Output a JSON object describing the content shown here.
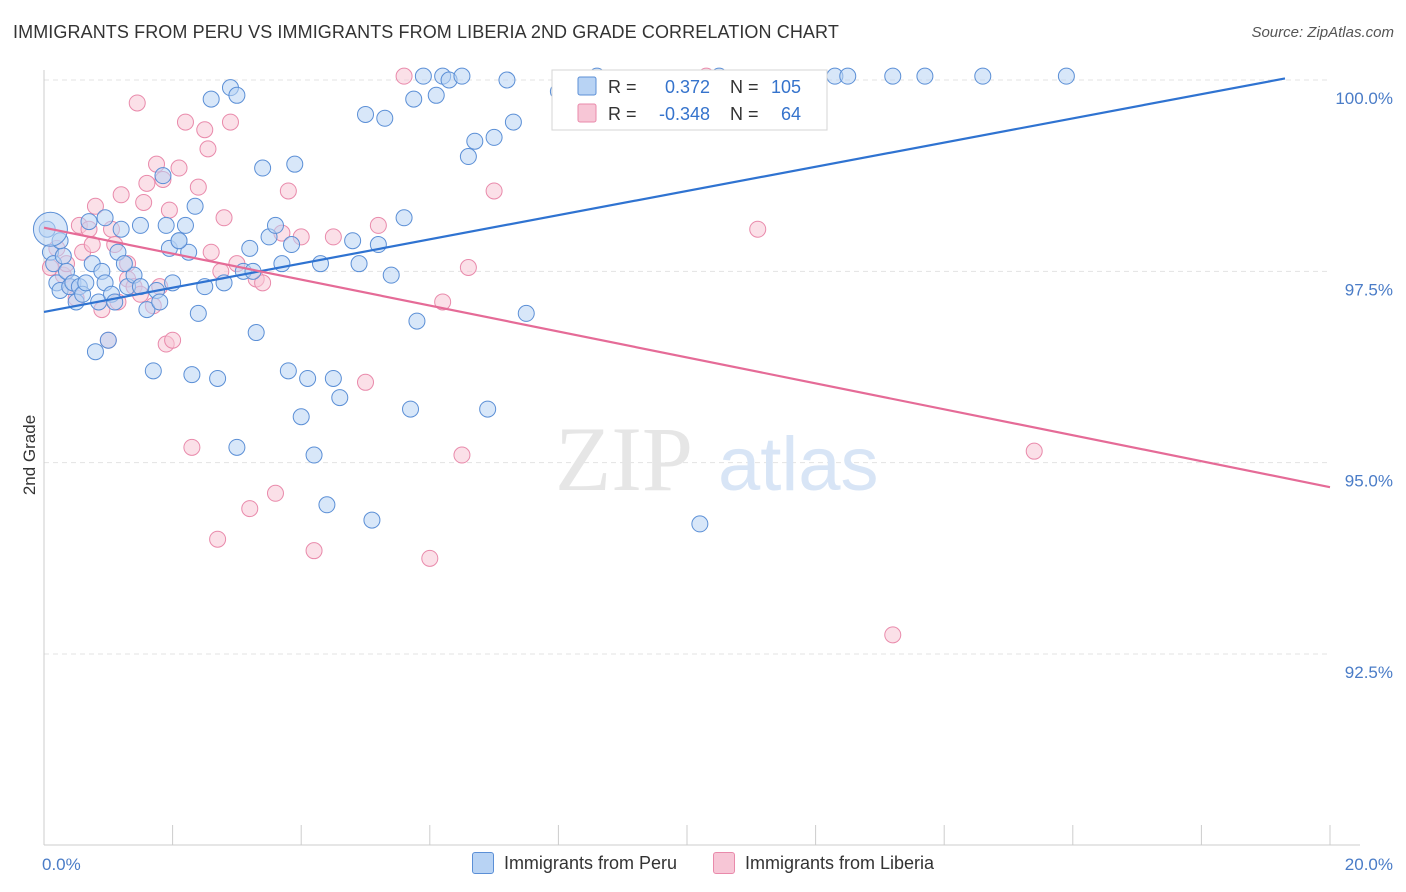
{
  "header": {
    "title": "IMMIGRANTS FROM PERU VS IMMIGRANTS FROM LIBERIA 2ND GRADE CORRELATION CHART",
    "source": "Source: ZipAtlas.com"
  },
  "watermark": {
    "part1": "ZIP",
    "part2": "atlas"
  },
  "legend_box": {
    "rows": [
      {
        "r_label": "R =",
        "r_value": "0.372",
        "n_label": "N =",
        "n_value": "105"
      },
      {
        "r_label": "R =",
        "r_value": "-0.348",
        "n_label": "N =",
        "n_value": "64"
      }
    ]
  },
  "bottom_legend": {
    "peru": "Immigrants from Peru",
    "liberia": "Immigrants from Liberia"
  },
  "colors": {
    "peru_fill": "#b8d3f4",
    "peru_stroke": "#5b8fd6",
    "peru_line": "#2f73d1",
    "liberia_fill": "#f7c6d6",
    "liberia_stroke": "#e98aab",
    "liberia_line": "#e56b97",
    "grid": "#e3e3e3",
    "tick_text": "#4a7cc7"
  },
  "chart_data": {
    "type": "scatter",
    "title": "IMMIGRANTS FROM PERU VS IMMIGRANTS FROM LIBERIA 2ND GRADE CORRELATION CHART",
    "xlabel": "",
    "ylabel": "2nd Grade",
    "xlim": [
      0,
      20
    ],
    "ylim": [
      90.3,
      100.3
    ],
    "x_tick_labels": [
      "0.0%",
      "20.0%"
    ],
    "y_ticks": [
      92.5,
      95.0,
      97.5,
      100.0
    ],
    "y_tick_labels": [
      "92.5%",
      "95.0%",
      "97.5%",
      "100.0%"
    ],
    "grid": true,
    "legend_position": "top-center",
    "series": [
      {
        "name": "Immigrants from Peru",
        "trendline": {
          "x": [
            0,
            19.3
          ],
          "y": [
            96.97,
            100.02
          ]
        },
        "points": [
          [
            0.05,
            98.05
          ],
          [
            0.1,
            97.75
          ],
          [
            0.15,
            97.6
          ],
          [
            0.2,
            97.35
          ],
          [
            0.25,
            97.25
          ],
          [
            0.3,
            97.7
          ],
          [
            0.35,
            97.5
          ],
          [
            0.4,
            97.3
          ],
          [
            0.45,
            97.35
          ],
          [
            0.5,
            97.1
          ],
          [
            0.55,
            97.3
          ],
          [
            0.6,
            97.2
          ],
          [
            0.7,
            98.15
          ],
          [
            0.75,
            97.6
          ],
          [
            0.8,
            96.45
          ],
          [
            0.85,
            97.1
          ],
          [
            0.9,
            97.5
          ],
          [
            0.95,
            97.35
          ],
          [
            1.0,
            96.6
          ],
          [
            1.05,
            97.2
          ],
          [
            1.1,
            97.1
          ],
          [
            1.15,
            97.75
          ],
          [
            1.2,
            98.05
          ],
          [
            1.3,
            97.3
          ],
          [
            1.4,
            97.45
          ],
          [
            1.5,
            97.3
          ],
          [
            1.6,
            97.0
          ],
          [
            1.7,
            96.2
          ],
          [
            1.75,
            97.25
          ],
          [
            1.8,
            97.1
          ],
          [
            1.85,
            98.75
          ],
          [
            1.9,
            98.1
          ],
          [
            1.95,
            97.8
          ],
          [
            2.0,
            97.35
          ],
          [
            2.1,
            97.9
          ],
          [
            2.2,
            98.1
          ],
          [
            2.25,
            97.75
          ],
          [
            2.3,
            96.15
          ],
          [
            2.35,
            98.35
          ],
          [
            2.4,
            96.95
          ],
          [
            2.5,
            97.3
          ],
          [
            2.6,
            99.75
          ],
          [
            2.7,
            96.1
          ],
          [
            2.8,
            97.35
          ],
          [
            2.9,
            99.9
          ],
          [
            3.0,
            95.2
          ],
          [
            3.1,
            97.5
          ],
          [
            3.2,
            97.8
          ],
          [
            3.3,
            96.7
          ],
          [
            3.4,
            98.85
          ],
          [
            3.5,
            97.95
          ],
          [
            3.6,
            98.1
          ],
          [
            3.7,
            97.6
          ],
          [
            3.8,
            96.2
          ],
          [
            3.9,
            98.9
          ],
          [
            4.0,
            95.6
          ],
          [
            4.1,
            96.1
          ],
          [
            4.2,
            95.1
          ],
          [
            4.3,
            97.6
          ],
          [
            4.4,
            94.45
          ],
          [
            4.5,
            96.1
          ],
          [
            4.6,
            95.85
          ],
          [
            4.8,
            97.9
          ],
          [
            5.0,
            99.55
          ],
          [
            5.1,
            94.25
          ],
          [
            5.3,
            99.5
          ],
          [
            5.4,
            97.45
          ],
          [
            5.6,
            98.2
          ],
          [
            5.7,
            95.7
          ],
          [
            5.75,
            99.75
          ],
          [
            5.8,
            96.85
          ],
          [
            5.9,
            100.05
          ],
          [
            6.1,
            99.8
          ],
          [
            6.2,
            100.05
          ],
          [
            6.3,
            100.0
          ],
          [
            6.5,
            100.05
          ],
          [
            6.6,
            99.0
          ],
          [
            6.7,
            99.2
          ],
          [
            6.9,
            95.7
          ],
          [
            7.0,
            99.25
          ],
          [
            7.2,
            100.0
          ],
          [
            7.3,
            99.45
          ],
          [
            7.5,
            96.95
          ],
          [
            8.0,
            99.85
          ],
          [
            8.6,
            100.05
          ],
          [
            9.3,
            99.9
          ],
          [
            10.2,
            94.2
          ],
          [
            10.5,
            100.05
          ],
          [
            12.3,
            100.05
          ],
          [
            12.5,
            100.05
          ],
          [
            13.2,
            100.05
          ],
          [
            13.7,
            100.05
          ],
          [
            14.6,
            100.05
          ],
          [
            15.9,
            100.05
          ],
          [
            0.95,
            98.2
          ],
          [
            1.5,
            98.1
          ],
          [
            0.25,
            97.9
          ],
          [
            3.0,
            99.8
          ],
          [
            5.2,
            97.85
          ],
          [
            3.25,
            97.5
          ],
          [
            2.1,
            97.9
          ],
          [
            1.25,
            97.6
          ],
          [
            0.65,
            97.35
          ],
          [
            4.9,
            97.6
          ],
          [
            3.85,
            97.85
          ]
        ],
        "large_point": [
          0.1,
          98.05
        ]
      },
      {
        "name": "Immigrants from Liberia",
        "trendline": {
          "x": [
            0,
            20
          ],
          "y": [
            98.07,
            94.68
          ]
        },
        "points": [
          [
            0.1,
            97.55
          ],
          [
            0.2,
            97.8
          ],
          [
            0.3,
            97.45
          ],
          [
            0.4,
            97.3
          ],
          [
            0.5,
            97.15
          ],
          [
            0.55,
            98.1
          ],
          [
            0.6,
            97.75
          ],
          [
            0.7,
            98.05
          ],
          [
            0.75,
            97.85
          ],
          [
            0.8,
            98.35
          ],
          [
            0.9,
            97.0
          ],
          [
            1.0,
            96.6
          ],
          [
            1.05,
            98.05
          ],
          [
            1.1,
            97.85
          ],
          [
            1.15,
            97.1
          ],
          [
            1.2,
            98.5
          ],
          [
            1.3,
            97.4
          ],
          [
            1.4,
            97.3
          ],
          [
            1.45,
            99.7
          ],
          [
            1.5,
            97.2
          ],
          [
            1.55,
            98.4
          ],
          [
            1.6,
            98.65
          ],
          [
            1.7,
            97.05
          ],
          [
            1.75,
            98.9
          ],
          [
            1.8,
            97.3
          ],
          [
            1.85,
            98.7
          ],
          [
            1.9,
            96.55
          ],
          [
            1.95,
            98.3
          ],
          [
            2.0,
            96.6
          ],
          [
            2.1,
            98.85
          ],
          [
            2.2,
            99.45
          ],
          [
            2.3,
            95.2
          ],
          [
            2.4,
            98.6
          ],
          [
            2.5,
            99.35
          ],
          [
            2.55,
            99.1
          ],
          [
            2.6,
            97.75
          ],
          [
            2.7,
            94.0
          ],
          [
            2.75,
            97.5
          ],
          [
            2.8,
            98.2
          ],
          [
            2.9,
            99.45
          ],
          [
            3.0,
            97.6
          ],
          [
            3.2,
            94.4
          ],
          [
            3.3,
            97.4
          ],
          [
            3.4,
            97.35
          ],
          [
            3.6,
            94.6
          ],
          [
            3.7,
            98.0
          ],
          [
            3.8,
            98.55
          ],
          [
            4.0,
            97.95
          ],
          [
            4.2,
            93.85
          ],
          [
            4.5,
            97.95
          ],
          [
            5.0,
            96.05
          ],
          [
            5.2,
            98.1
          ],
          [
            5.6,
            100.05
          ],
          [
            6.0,
            93.75
          ],
          [
            6.2,
            97.1
          ],
          [
            6.5,
            95.1
          ],
          [
            6.6,
            97.55
          ],
          [
            7.0,
            98.55
          ],
          [
            10.3,
            100.05
          ],
          [
            11.1,
            98.05
          ],
          [
            13.2,
            92.75
          ],
          [
            15.4,
            95.15
          ],
          [
            0.35,
            97.6
          ],
          [
            1.3,
            97.6
          ]
        ]
      }
    ]
  }
}
